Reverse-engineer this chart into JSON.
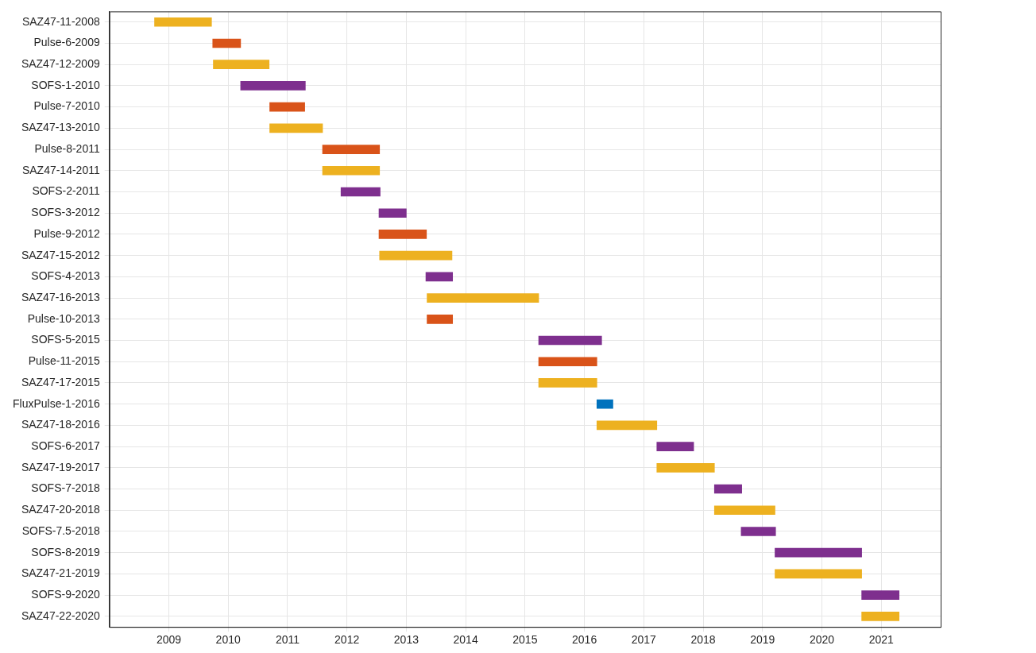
{
  "chart_data": {
    "type": "bar",
    "orientation": "horizontal",
    "grid": true,
    "categories": [
      "SAZ47-11-2008",
      "Pulse-6-2009",
      "SAZ47-12-2009",
      "SOFS-1-2010",
      "Pulse-7-2010",
      "SAZ47-13-2010",
      "Pulse-8-2011",
      "SAZ47-14-2011",
      "SOFS-2-2011",
      "SOFS-3-2012",
      "Pulse-9-2012",
      "SAZ47-15-2012",
      "SOFS-4-2013",
      "SAZ47-16-2013",
      "Pulse-10-2013",
      "SOFS-5-2015",
      "Pulse-11-2015",
      "SAZ47-17-2015",
      "FluxPulse-1-2016",
      "SAZ47-18-2016",
      "SOFS-6-2017",
      "SAZ47-19-2017",
      "SOFS-7-2018",
      "SAZ47-20-2018",
      "SOFS-7.5-2018",
      "SOFS-8-2019",
      "SAZ47-21-2019",
      "SOFS-9-2020",
      "SAZ47-22-2020"
    ],
    "base": [
      2008.76,
      2009.74,
      2009.75,
      2010.21,
      2010.7,
      2010.7,
      2011.59,
      2011.59,
      2011.9,
      2012.54,
      2012.54,
      2012.55,
      2013.33,
      2013.35,
      2013.35,
      2015.23,
      2015.23,
      2015.23,
      2016.21,
      2016.21,
      2017.22,
      2017.22,
      2018.19,
      2018.19,
      2018.64,
      2019.21,
      2019.21,
      2020.67,
      2020.67
    ],
    "values": [
      0.96,
      0.47,
      0.94,
      1.09,
      0.59,
      0.89,
      0.96,
      0.96,
      0.66,
      0.46,
      0.8,
      1.22,
      0.45,
      1.88,
      0.43,
      1.06,
      0.98,
      0.98,
      0.27,
      1.01,
      0.62,
      0.97,
      0.46,
      1.02,
      0.58,
      1.46,
      1.46,
      0.63,
      0.63
    ],
    "colors": [
      "#edb120",
      "#d95319",
      "#edb120",
      "#7e2f8e",
      "#d95319",
      "#edb120",
      "#d95319",
      "#edb120",
      "#7e2f8e",
      "#7e2f8e",
      "#d95319",
      "#edb120",
      "#7e2f8e",
      "#edb120",
      "#d95319",
      "#7e2f8e",
      "#d95319",
      "#edb120",
      "#0072bd",
      "#edb120",
      "#7e2f8e",
      "#edb120",
      "#7e2f8e",
      "#edb120",
      "#7e2f8e",
      "#7e2f8e",
      "#edb120",
      "#7e2f8e",
      "#edb120"
    ],
    "xlim": [
      2008,
      2022
    ],
    "xticks": [
      2009,
      2010,
      2011,
      2012,
      2013,
      2014,
      2015,
      2016,
      2017,
      2018,
      2019,
      2020,
      2021
    ]
  }
}
